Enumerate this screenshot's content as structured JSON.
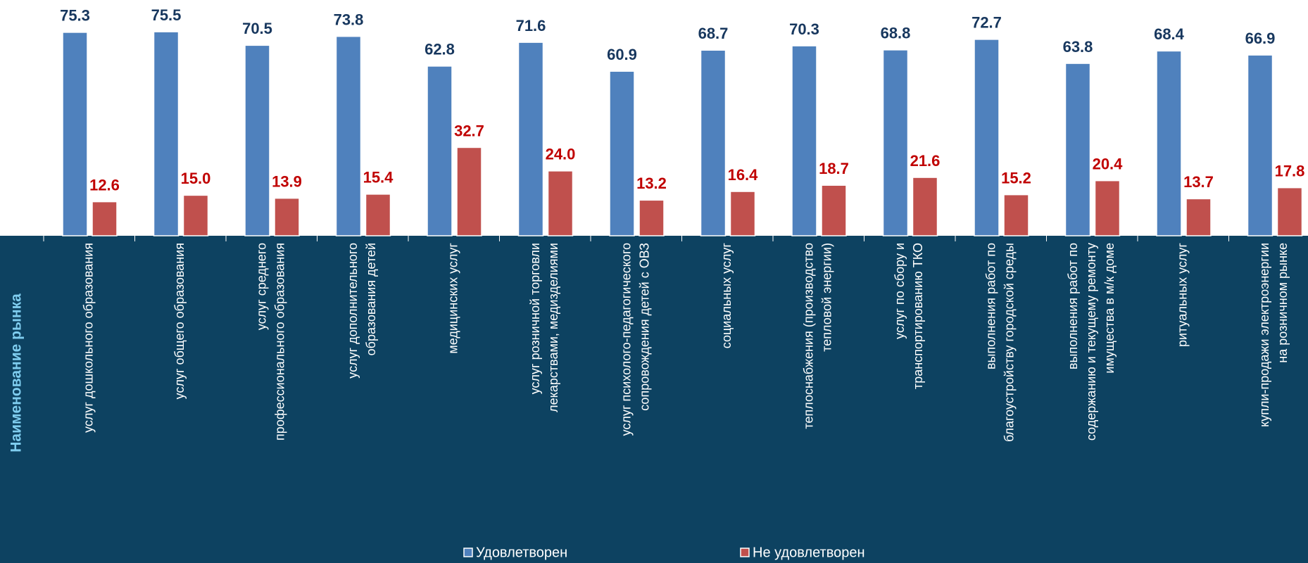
{
  "chart_data": {
    "type": "bar",
    "axis_title": "Наименование рынка",
    "categories": [
      [
        "услуг дошкольного образования"
      ],
      [
        "услуг общего образования"
      ],
      [
        "услуг среднего",
        "профессионального образования"
      ],
      [
        "услуг дополнительного",
        "образования детей"
      ],
      [
        "медицинских услуг"
      ],
      [
        "услуг розничной торговли",
        "лекарствами, медизделиями"
      ],
      [
        "услуг психолого-педагогического",
        "сопровождения детей с ОВЗ"
      ],
      [
        "социальных услуг"
      ],
      [
        "теплоснабжения (производство",
        "тепловой энергии)"
      ],
      [
        "услуг по сбору и",
        "транспортированию ТКО"
      ],
      [
        "выполнения работ по",
        "благоустройству городской среды"
      ],
      [
        "выполнения работ по",
        "содержанию и текущему ремонту",
        "имущества в м/к доме"
      ],
      [
        "ритуальных услуг"
      ],
      [
        "купли-продажи электроэнергии",
        "на розничном рынке"
      ]
    ],
    "series": [
      {
        "name": "Удовлетворен",
        "color": "#4f81bd",
        "label_color": "#17375e",
        "values": [
          75.3,
          75.5,
          70.5,
          73.8,
          62.8,
          71.6,
          60.9,
          68.7,
          70.3,
          68.8,
          72.7,
          63.8,
          68.4,
          66.9
        ]
      },
      {
        "name": "Не удовлетворен",
        "color": "#c0504d",
        "label_color": "#c00000",
        "values": [
          12.6,
          15.0,
          13.9,
          15.4,
          32.7,
          24.0,
          13.2,
          16.4,
          18.7,
          21.6,
          15.2,
          20.4,
          13.7,
          17.8
        ],
        "value_labels": [
          "12.6",
          "15.0",
          "13.9",
          "15.4",
          "32.7",
          "24.0",
          "13.2",
          "16.4",
          "18.7",
          "21.6",
          "15.2",
          "20.4",
          "13.7",
          "17.8"
        ]
      }
    ],
    "ylim": [
      0,
      87
    ],
    "legend": "bottom"
  }
}
